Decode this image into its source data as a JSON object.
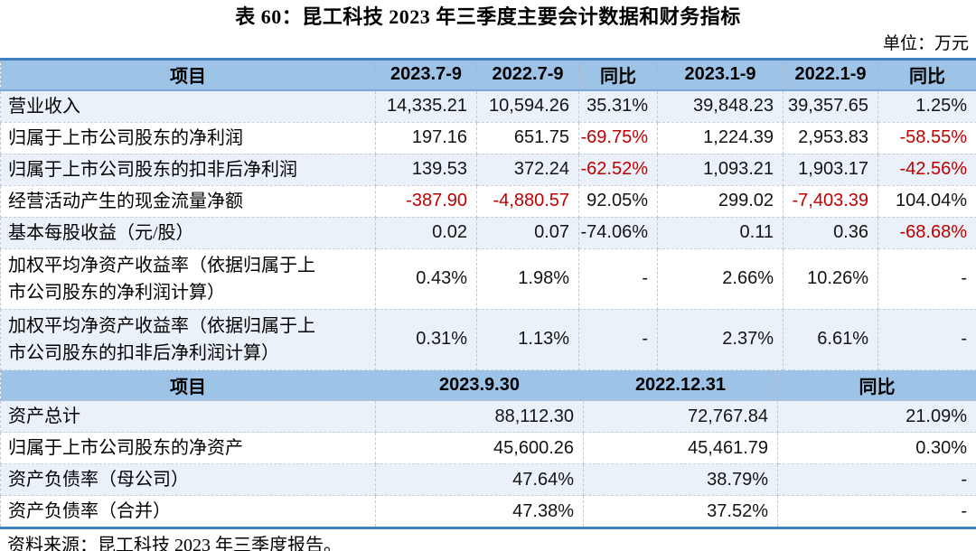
{
  "title": "表 60：昆工科技 2023 年三季度主要会计数据和财务指标",
  "unit_note": "单位：万元",
  "source_note": "资料来源：昆工科技 2023 年三季度报告。",
  "colors": {
    "header_bg": "#9DC3E6",
    "stripe_bg": "#EAF1F9",
    "border_blue": "#4080C0",
    "negative_text": "#C00000"
  },
  "quarterly_table": {
    "headers": [
      "项目",
      "2023.7-9",
      "2022.7-9",
      "同比",
      "2023.1-9",
      "2022.1-9",
      "同比"
    ],
    "rows": [
      {
        "label": "营业收入",
        "cells": [
          {
            "v": "14,335.21"
          },
          {
            "v": "10,594.26"
          },
          {
            "v": "35.31%"
          },
          {
            "v": "39,848.23"
          },
          {
            "v": "39,357.65"
          },
          {
            "v": "1.25%"
          }
        ]
      },
      {
        "label": "归属于上市公司股东的净利润",
        "cells": [
          {
            "v": "197.16"
          },
          {
            "v": "651.75"
          },
          {
            "v": "-69.75%",
            "neg": true
          },
          {
            "v": "1,224.39"
          },
          {
            "v": "2,953.83"
          },
          {
            "v": "-58.55%",
            "neg": true
          }
        ]
      },
      {
        "label": "归属于上市公司股东的扣非后净利润",
        "cells": [
          {
            "v": "139.53"
          },
          {
            "v": "372.24"
          },
          {
            "v": "-62.52%",
            "neg": true
          },
          {
            "v": "1,093.21"
          },
          {
            "v": "1,903.17"
          },
          {
            "v": "-42.56%",
            "neg": true
          }
        ]
      },
      {
        "label": "经营活动产生的现金流量净额",
        "cells": [
          {
            "v": "-387.90",
            "neg": true
          },
          {
            "v": "-4,880.57",
            "neg": true
          },
          {
            "v": "92.05%"
          },
          {
            "v": "299.02"
          },
          {
            "v": "-7,403.39",
            "neg": true
          },
          {
            "v": "104.04%"
          }
        ]
      },
      {
        "label": "基本每股收益（元/股）",
        "cells": [
          {
            "v": "0.02"
          },
          {
            "v": "0.07"
          },
          {
            "v": "-74.06%"
          },
          {
            "v": "0.11"
          },
          {
            "v": "0.36"
          },
          {
            "v": "-68.68%",
            "neg": true
          }
        ]
      },
      {
        "label": "加权平均净资产收益率（依据归属于上\n市公司股东的净利润计算）",
        "cells": [
          {
            "v": "0.43%"
          },
          {
            "v": "1.98%"
          },
          {
            "v": "-"
          },
          {
            "v": "2.66%"
          },
          {
            "v": "10.26%"
          },
          {
            "v": "-"
          }
        ]
      },
      {
        "label": "加权平均净资产收益率（依据归属于上\n市公司股东的扣非后净利润计算）",
        "cells": [
          {
            "v": "0.31%"
          },
          {
            "v": "1.13%"
          },
          {
            "v": "-"
          },
          {
            "v": "2.37%"
          },
          {
            "v": "6.61%"
          },
          {
            "v": "-"
          }
        ]
      }
    ]
  },
  "balance_table": {
    "headers": [
      "项目",
      "2023.9.30",
      "2022.12.31",
      "同比"
    ],
    "rows": [
      {
        "label": "资产总计",
        "cells": [
          {
            "v": "88,112.30"
          },
          {
            "v": "72,767.84"
          },
          {
            "v": "21.09%"
          }
        ]
      },
      {
        "label": "归属于上市公司股东的净资产",
        "cells": [
          {
            "v": "45,600.26"
          },
          {
            "v": "45,461.79"
          },
          {
            "v": "0.30%"
          }
        ]
      },
      {
        "label": "资产负债率（母公司）",
        "cells": [
          {
            "v": "47.64%"
          },
          {
            "v": "38.79%"
          },
          {
            "v": "-"
          }
        ]
      },
      {
        "label": "资产负债率（合并）",
        "cells": [
          {
            "v": "47.38%"
          },
          {
            "v": "37.52%"
          },
          {
            "v": "-"
          }
        ]
      }
    ]
  }
}
